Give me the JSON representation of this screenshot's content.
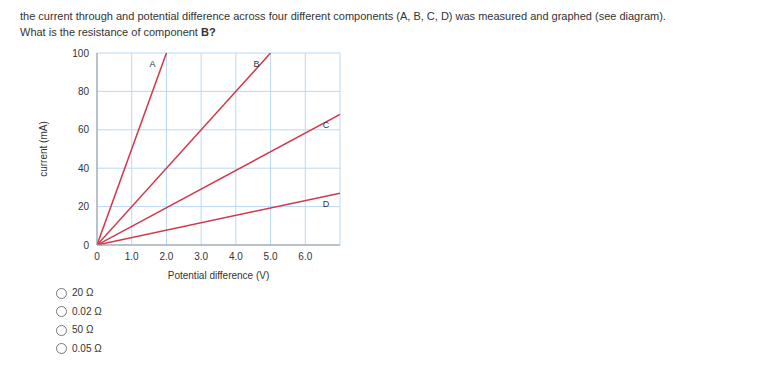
{
  "question": {
    "line1": "the current through and potential difference across four different components (A, B, C, D) was measured and graphed (see diagram).",
    "line2": "What is the resistance of component",
    "emphasis": "B?"
  },
  "chart_data": {
    "type": "line",
    "x_label": "Potential difference (V)",
    "y_label": "current (mA)",
    "xlim": [
      0,
      7
    ],
    "xticks": [
      0,
      {
        "value": 1,
        "label": "1.0"
      },
      {
        "value": 2,
        "label": "2.0"
      },
      {
        "value": 3,
        "label": "3.0"
      },
      {
        "value": 4,
        "label": "4.0"
      },
      {
        "value": 5,
        "label": "5.0"
      },
      {
        "value": 6,
        "label": "6.0"
      }
    ],
    "ylim": [
      0,
      100
    ],
    "yticks": [
      0,
      20,
      40,
      60,
      80,
      100
    ],
    "grid": true,
    "series": [
      {
        "name": "A",
        "color": "#d0384a",
        "x": [
          0,
          2
        ],
        "values": [
          0,
          100
        ]
      },
      {
        "name": "B",
        "color": "#d0384a",
        "x": [
          0,
          5
        ],
        "values": [
          0,
          100
        ]
      },
      {
        "name": "C",
        "color": "#d0384a",
        "x": [
          0,
          7
        ],
        "values": [
          0,
          68
        ]
      },
      {
        "name": "D",
        "color": "#d0384a",
        "x": [
          0,
          7
        ],
        "values": [
          0,
          27
        ]
      }
    ]
  },
  "options": [
    "20 Ω",
    "0.02 Ω",
    "50 Ω",
    "0.05 Ω"
  ]
}
